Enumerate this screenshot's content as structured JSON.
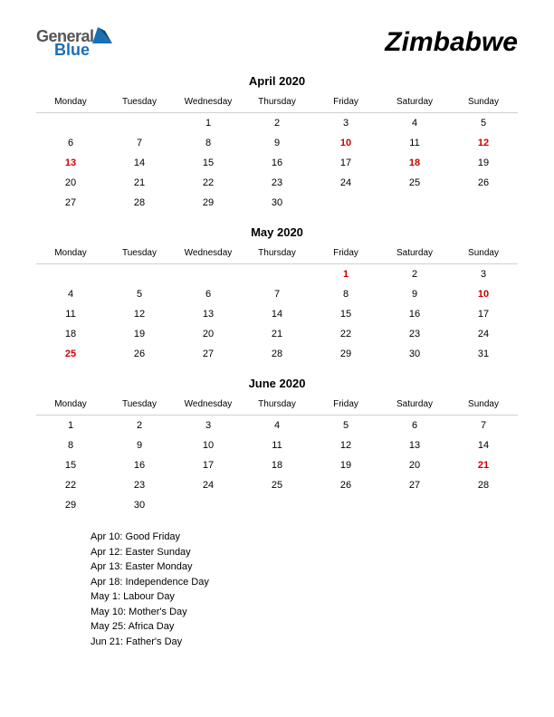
{
  "logo": {
    "general": "General",
    "blue": "Blue",
    "triangle_color": "#1a6fb5"
  },
  "country": "Zimbabwe",
  "weekdays": [
    "Monday",
    "Tuesday",
    "Wednesday",
    "Thursday",
    "Friday",
    "Saturday",
    "Sunday"
  ],
  "months": [
    {
      "title": "April 2020",
      "weeks": [
        [
          {
            "d": ""
          },
          {
            "d": ""
          },
          {
            "d": "1"
          },
          {
            "d": "2"
          },
          {
            "d": "3"
          },
          {
            "d": "4"
          },
          {
            "d": "5"
          }
        ],
        [
          {
            "d": "6"
          },
          {
            "d": "7"
          },
          {
            "d": "8"
          },
          {
            "d": "9"
          },
          {
            "d": "10",
            "h": true
          },
          {
            "d": "11"
          },
          {
            "d": "12",
            "h": true
          }
        ],
        [
          {
            "d": "13",
            "h": true
          },
          {
            "d": "14"
          },
          {
            "d": "15"
          },
          {
            "d": "16"
          },
          {
            "d": "17"
          },
          {
            "d": "18",
            "h": true
          },
          {
            "d": "19"
          }
        ],
        [
          {
            "d": "20"
          },
          {
            "d": "21"
          },
          {
            "d": "22"
          },
          {
            "d": "23"
          },
          {
            "d": "24"
          },
          {
            "d": "25"
          },
          {
            "d": "26"
          }
        ],
        [
          {
            "d": "27"
          },
          {
            "d": "28"
          },
          {
            "d": "29"
          },
          {
            "d": "30"
          },
          {
            "d": ""
          },
          {
            "d": ""
          },
          {
            "d": ""
          }
        ]
      ]
    },
    {
      "title": "May 2020",
      "weeks": [
        [
          {
            "d": ""
          },
          {
            "d": ""
          },
          {
            "d": ""
          },
          {
            "d": ""
          },
          {
            "d": "1",
            "h": true
          },
          {
            "d": "2"
          },
          {
            "d": "3"
          }
        ],
        [
          {
            "d": "4"
          },
          {
            "d": "5"
          },
          {
            "d": "6"
          },
          {
            "d": "7"
          },
          {
            "d": "8"
          },
          {
            "d": "9"
          },
          {
            "d": "10",
            "h": true
          }
        ],
        [
          {
            "d": "11"
          },
          {
            "d": "12"
          },
          {
            "d": "13"
          },
          {
            "d": "14"
          },
          {
            "d": "15"
          },
          {
            "d": "16"
          },
          {
            "d": "17"
          }
        ],
        [
          {
            "d": "18"
          },
          {
            "d": "19"
          },
          {
            "d": "20"
          },
          {
            "d": "21"
          },
          {
            "d": "22"
          },
          {
            "d": "23"
          },
          {
            "d": "24"
          }
        ],
        [
          {
            "d": "25",
            "h": true
          },
          {
            "d": "26"
          },
          {
            "d": "27"
          },
          {
            "d": "28"
          },
          {
            "d": "29"
          },
          {
            "d": "30"
          },
          {
            "d": "31"
          }
        ]
      ]
    },
    {
      "title": "June 2020",
      "weeks": [
        [
          {
            "d": "1"
          },
          {
            "d": "2"
          },
          {
            "d": "3"
          },
          {
            "d": "4"
          },
          {
            "d": "5"
          },
          {
            "d": "6"
          },
          {
            "d": "7"
          }
        ],
        [
          {
            "d": "8"
          },
          {
            "d": "9"
          },
          {
            "d": "10"
          },
          {
            "d": "11"
          },
          {
            "d": "12"
          },
          {
            "d": "13"
          },
          {
            "d": "14"
          }
        ],
        [
          {
            "d": "15"
          },
          {
            "d": "16"
          },
          {
            "d": "17"
          },
          {
            "d": "18"
          },
          {
            "d": "19"
          },
          {
            "d": "20"
          },
          {
            "d": "21",
            "h": true
          }
        ],
        [
          {
            "d": "22"
          },
          {
            "d": "23"
          },
          {
            "d": "24"
          },
          {
            "d": "25"
          },
          {
            "d": "26"
          },
          {
            "d": "27"
          },
          {
            "d": "28"
          }
        ],
        [
          {
            "d": "29"
          },
          {
            "d": "30"
          },
          {
            "d": ""
          },
          {
            "d": ""
          },
          {
            "d": ""
          },
          {
            "d": ""
          },
          {
            "d": ""
          }
        ]
      ]
    }
  ],
  "holidays": [
    "Apr 10: Good Friday",
    "Apr 12: Easter Sunday",
    "Apr 13: Easter Monday",
    "Apr 18: Independence Day",
    "May 1: Labour Day",
    "May 10: Mother's Day",
    "May 25: Africa Day",
    "Jun 21: Father's Day"
  ],
  "colors": {
    "holiday_text": "#cc0000",
    "header_border": "#d0d0d0",
    "background": "#ffffff",
    "text": "#000000"
  },
  "typography": {
    "country_fontsize": 30,
    "month_title_fontsize": 13,
    "weekday_fontsize": 10,
    "day_fontsize": 11,
    "holiday_list_fontsize": 11
  }
}
